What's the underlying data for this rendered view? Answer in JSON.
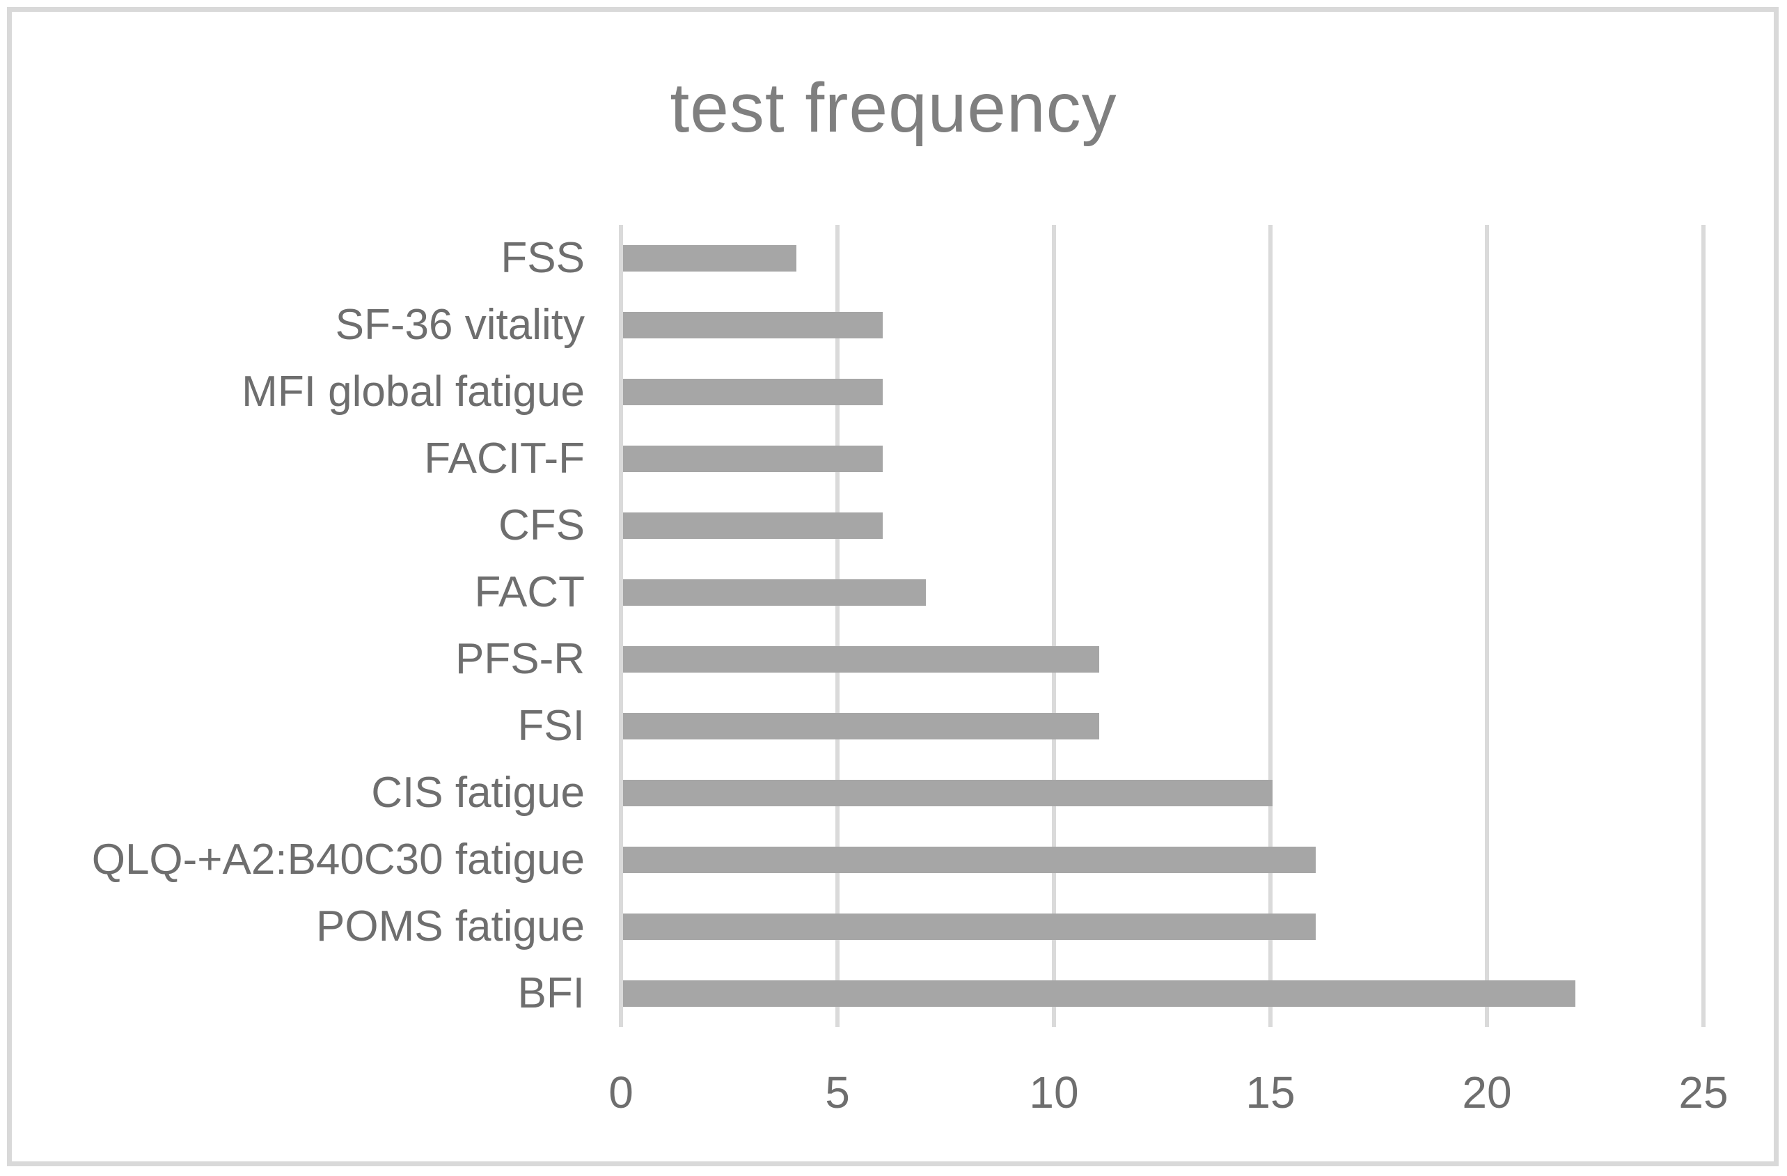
{
  "title": "test frequency",
  "colors": {
    "bar": "#a6a6a6",
    "gridline": "#dadada",
    "frame_border": "#d9d9d9",
    "title_text": "#7f7f7f",
    "axis_text": "#6e6e6e",
    "background": "#ffffff"
  },
  "chart_data": {
    "type": "bar",
    "orientation": "horizontal",
    "title": "test frequency",
    "categories": [
      "FSS",
      "SF-36 vitality",
      "MFI global fatigue",
      "FACIT-F",
      "CFS",
      "FACT",
      "PFS-R",
      "FSI",
      "CIS fatigue",
      "QLQ-+A2:B40C30 fatigue",
      "POMS fatigue",
      "BFI"
    ],
    "values": [
      4,
      6,
      6,
      6,
      6,
      7,
      11,
      11,
      15,
      16,
      16,
      22
    ],
    "x_ticks": [
      0,
      5,
      10,
      15,
      20,
      25
    ],
    "xlim": [
      0,
      25
    ],
    "xlabel": "",
    "ylabel": "",
    "grid": "vertical-only",
    "legend": "none",
    "bar_order_note": "categories listed top to bottom as displayed"
  }
}
